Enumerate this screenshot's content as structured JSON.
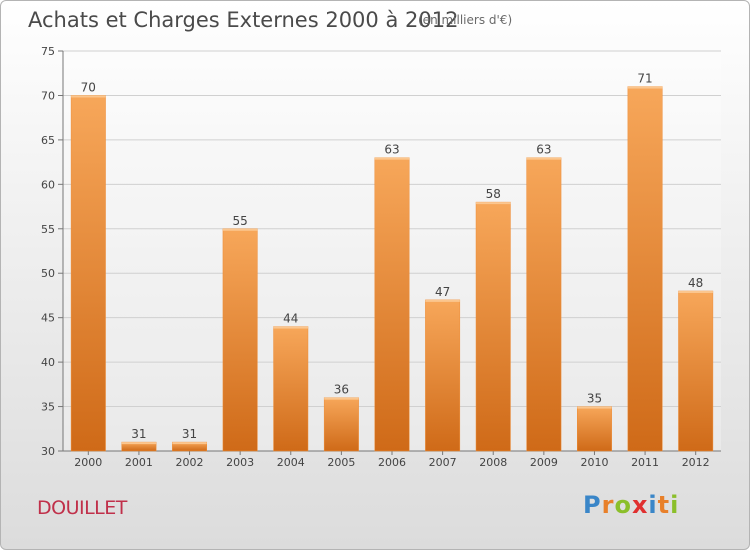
{
  "header": {
    "title": "Achats et Charges Externes 2000 à 2012",
    "subtitle": "(en milliers d'€)"
  },
  "footer": {
    "town": "DOUILLET",
    "logo_letters": [
      {
        "ch": "P",
        "color": "#3a86c8"
      },
      {
        "ch": "r",
        "color": "#e8802a"
      },
      {
        "ch": "o",
        "color": "#8bbf2a"
      },
      {
        "ch": "x",
        "color": "#e03030"
      },
      {
        "ch": "i",
        "color": "#3a86c8"
      },
      {
        "ch": "t",
        "color": "#e8802a"
      },
      {
        "ch": "i",
        "color": "#8bbf2a"
      }
    ]
  },
  "chart_data": {
    "type": "bar",
    "title": "Achats et Charges Externes 2000 à 2012",
    "subtitle": "(en milliers d'€)",
    "categories": [
      "2000",
      "2001",
      "2002",
      "2003",
      "2004",
      "2005",
      "2006",
      "2007",
      "2008",
      "2009",
      "2010",
      "2011",
      "2012"
    ],
    "values": [
      70,
      31,
      31,
      55,
      44,
      36,
      63,
      47,
      58,
      63,
      35,
      71,
      48
    ],
    "ylim": [
      30,
      75
    ],
    "yticks": [
      30,
      35,
      40,
      45,
      50,
      55,
      60,
      65,
      70,
      75
    ],
    "grid": true,
    "bar_color": "#ee8c35",
    "bar_color_light": "#f7a75a",
    "bar_color_dark": "#cf6a18"
  }
}
